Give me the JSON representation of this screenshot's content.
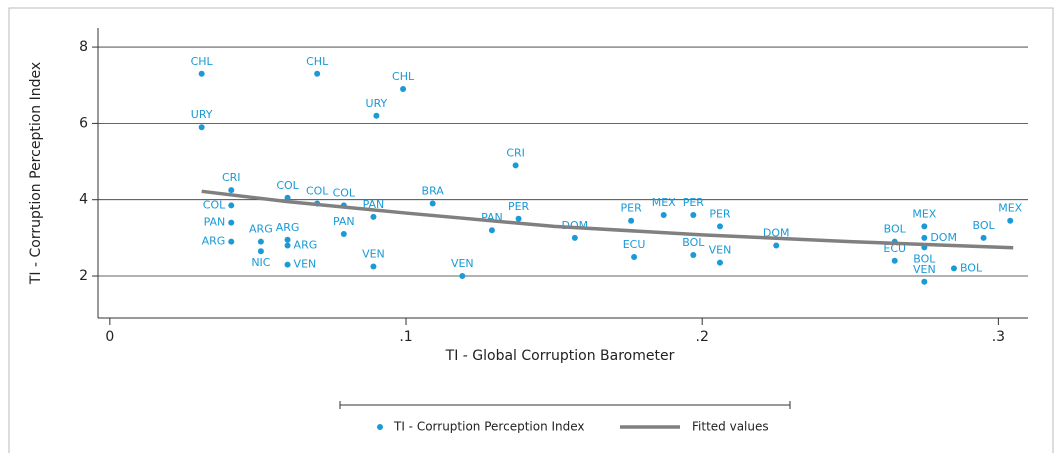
{
  "chart_data": {
    "type": "scatter",
    "xlabel": "TI - Global Corruption Barometer",
    "ylabel": "TI - Corruption Perception Index",
    "xlim": [
      -0.004,
      0.31
    ],
    "ylim": [
      0.9,
      8.5
    ],
    "xticks": [
      0,
      {
        "value": 0.1,
        "label": ".1"
      },
      {
        "value": 0.2,
        "label": ".2"
      },
      {
        "value": 0.3,
        "label": ".3"
      }
    ],
    "yticks": [
      2,
      4,
      6,
      8
    ],
    "grid": true,
    "series": [
      {
        "name": "TI - Corruption Perception Index",
        "color": "#1a9ad6",
        "labels": [
          "CHL",
          "URY",
          "CHL",
          "URY",
          "CHL",
          "CRI",
          "CRI",
          "COL",
          "COL",
          "COL",
          "COL",
          "PAN",
          "BRA",
          "PAN",
          "PAN",
          "PER",
          "ARG",
          "ARG",
          "ARG",
          "ARG",
          "NIC",
          "VEN",
          "PAN",
          "VEN",
          "VEN",
          "DOM",
          "PER",
          "ECU",
          "MEX",
          "PER",
          "BOL",
          "PER",
          "VEN",
          "DOM",
          "BOL",
          "ECU",
          "MEX",
          "DOM",
          "BOL",
          "VEN",
          "BOL",
          "BOL",
          "MEX"
        ],
        "x": [
          0.031,
          0.031,
          0.07,
          0.09,
          0.099,
          0.137,
          0.041,
          0.06,
          0.041,
          0.07,
          0.079,
          0.089,
          0.109,
          0.041,
          0.129,
          0.138,
          0.041,
          0.051,
          0.06,
          0.06,
          0.051,
          0.06,
          0.079,
          0.089,
          0.119,
          0.157,
          0.176,
          0.177,
          0.187,
          0.197,
          0.197,
          0.206,
          0.206,
          0.225,
          0.265,
          0.265,
          0.275,
          0.275,
          0.275,
          0.275,
          0.285,
          0.295,
          0.304
        ],
        "values": [
          7.3,
          5.9,
          7.3,
          6.2,
          6.9,
          4.9,
          4.25,
          4.05,
          3.85,
          3.9,
          3.85,
          3.55,
          3.9,
          3.4,
          3.2,
          3.5,
          2.9,
          2.9,
          2.95,
          2.8,
          2.65,
          2.3,
          3.1,
          2.25,
          2.0,
          3.0,
          3.45,
          2.5,
          3.6,
          3.6,
          2.55,
          3.3,
          2.35,
          2.8,
          2.9,
          2.4,
          3.3,
          3.0,
          2.75,
          1.85,
          2.2,
          3.0,
          3.45
        ]
      },
      {
        "name": "Fitted values",
        "color": "#808080",
        "line": true,
        "x": [
          0.031,
          0.06,
          0.1,
          0.15,
          0.2,
          0.25,
          0.305
        ],
        "values": [
          4.22,
          3.95,
          3.65,
          3.3,
          3.08,
          2.9,
          2.74
        ]
      }
    ]
  }
}
